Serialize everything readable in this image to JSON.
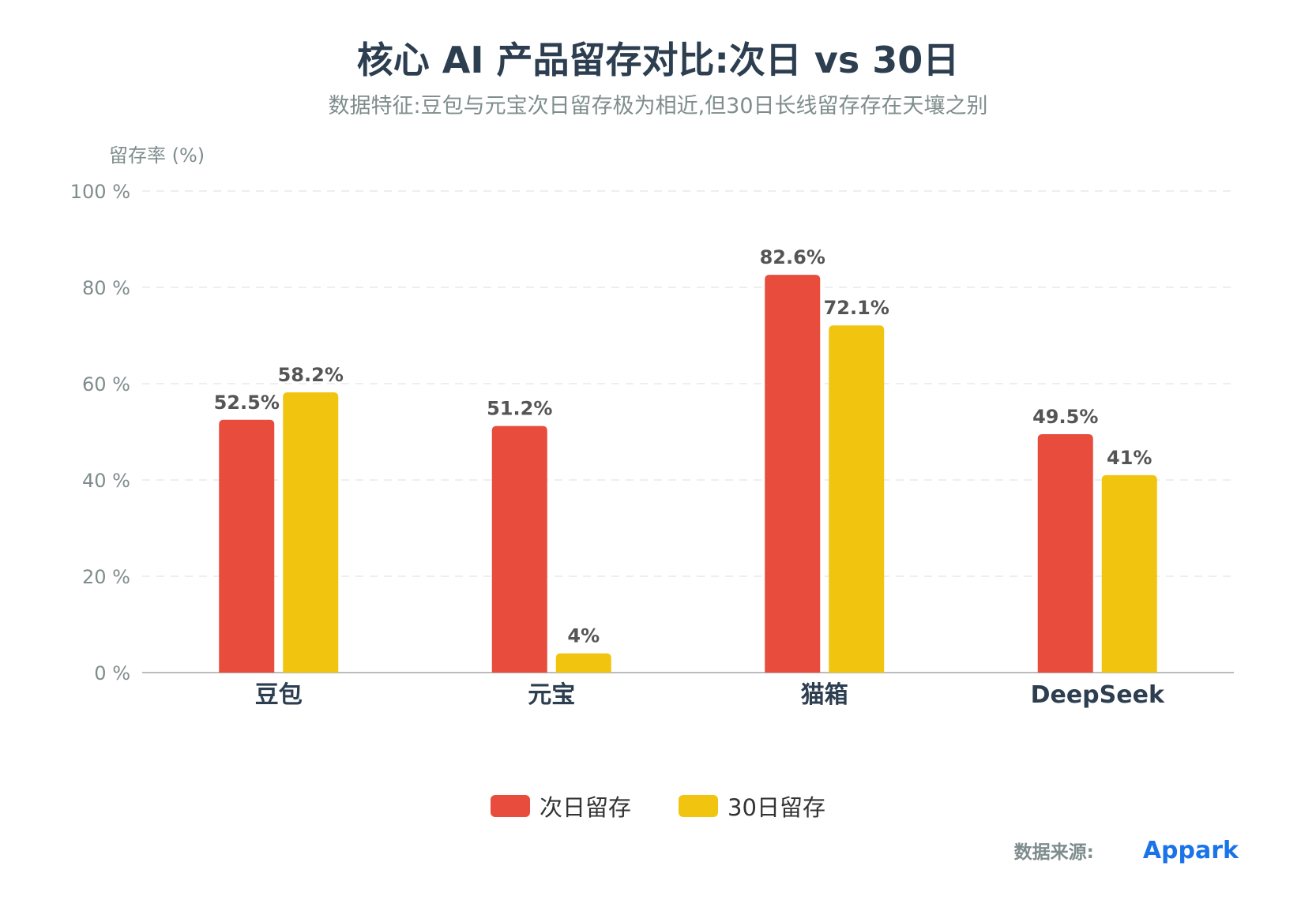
{
  "colors": {
    "title": "#2c3e50",
    "subtitle": "#7f8c8d",
    "axis_text": "#7f8c8d",
    "category_text": "#2c3e50",
    "label_text": "#555555",
    "grid": "#e8e8e8",
    "baseline": "#bbbbbb",
    "source_link": "#1a73e8"
  },
  "legend": [
    {
      "name": "次日留存",
      "color": "#e74c3c"
    },
    {
      "name": "30日留存",
      "color": "#f1c40f"
    }
  ],
  "source": {
    "label": "数据来源:",
    "value": "Appark"
  },
  "chart_data": {
    "type": "bar",
    "title": "核心 AI 产品留存对比:次日 vs 30日",
    "subtitle": "数据特征:豆包与元宝次日留存极为相近,但30日长线留存存在天壤之别",
    "xlabel": "",
    "ylabel": "留存率 (%)",
    "ylim": [
      0,
      100
    ],
    "yticks": [
      0,
      20,
      40,
      60,
      80,
      100
    ],
    "ytick_labels": [
      "0 %",
      "20 %",
      "40 %",
      "60 %",
      "80 %",
      "100 %"
    ],
    "grid": true,
    "legend_position": "bottom-center",
    "categories": [
      "豆包",
      "元宝",
      "猫箱",
      "DeepSeek"
    ],
    "series": [
      {
        "name": "次日留存",
        "color": "#e74c3c",
        "values": [
          52.5,
          51.2,
          82.6,
          49.5
        ],
        "labels": [
          "52.5%",
          "51.2%",
          "82.6%",
          "49.5%"
        ]
      },
      {
        "name": "30日留存",
        "color": "#f1c40f",
        "values": [
          58.2,
          4,
          72.1,
          41
        ],
        "labels": [
          "58.2%",
          "4%",
          "72.1%",
          "41%"
        ]
      }
    ]
  }
}
